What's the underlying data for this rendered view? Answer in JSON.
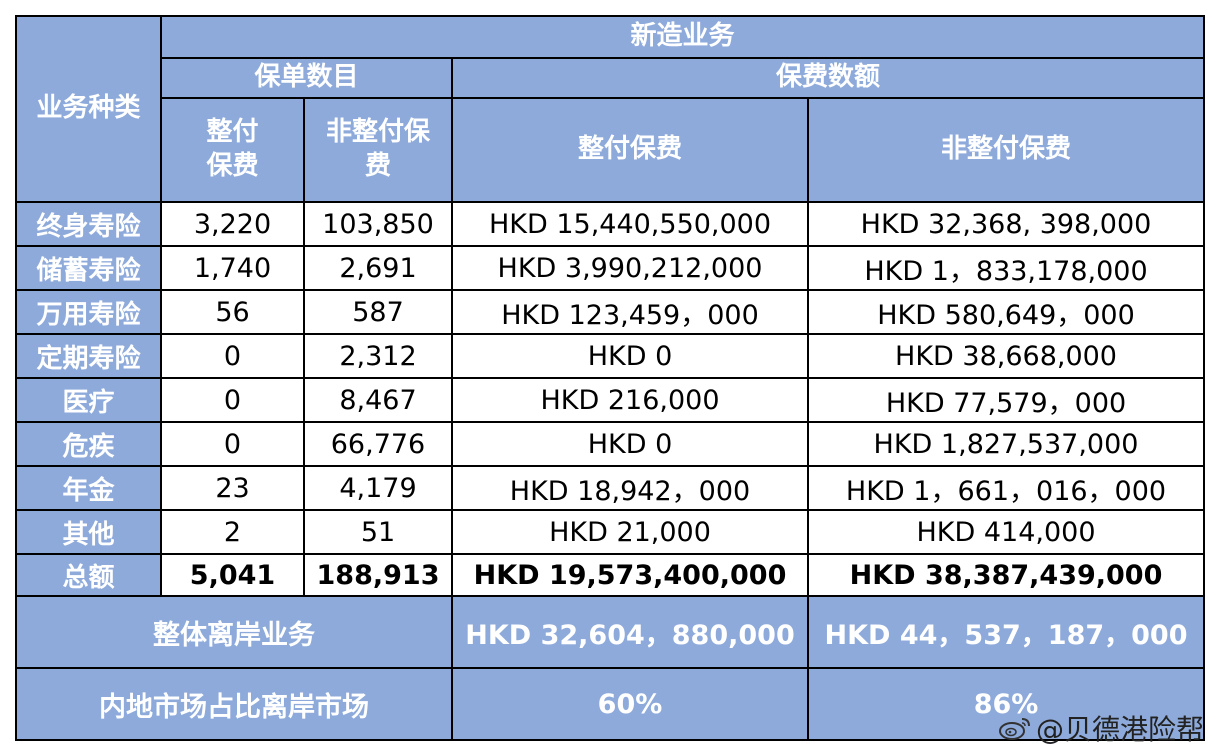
{
  "headers": {
    "category": "业务种类",
    "new_business": "新造业务",
    "policy_count": "保单数目",
    "premium_amount": "保费数额",
    "single_premium_count": "整付\n保费",
    "non_single_premium_count": "非整付保\n费",
    "single_premium": "整付保费",
    "non_single_premium": "非整付保费"
  },
  "rows": [
    {
      "category": "终身寿险",
      "single_count": "3,220",
      "non_single_count": "103,850",
      "single_premium": "HKD 15,440,550,000",
      "non_single_premium": "HKD 32,368, 398,000"
    },
    {
      "category": "储蓄寿险",
      "single_count": "1,740",
      "non_single_count": "2,691",
      "single_premium": "HKD 3,990,212,000",
      "non_single_premium": "HKD 1，833,178,000"
    },
    {
      "category": "万用寿险",
      "single_count": "56",
      "non_single_count": "587",
      "single_premium": "HKD 123,459，000",
      "non_single_premium": "HKD 580,649，000"
    },
    {
      "category": "定期寿险",
      "single_count": "0",
      "non_single_count": "2,312",
      "single_premium": "HKD 0",
      "non_single_premium": "HKD 38,668,000"
    },
    {
      "category": "医疗",
      "single_count": "0",
      "non_single_count": "8,467",
      "single_premium": "HKD 216,000",
      "non_single_premium": "HKD 77,579，000"
    },
    {
      "category": "危疾",
      "single_count": "0",
      "non_single_count": "66,776",
      "single_premium": "HKD 0",
      "non_single_premium": "HKD 1,827,537,000"
    },
    {
      "category": "年金",
      "single_count": "23",
      "non_single_count": "4,179",
      "single_premium": "HKD 18,942，000",
      "non_single_premium": "HKD 1，661，016，000"
    },
    {
      "category": "其他",
      "single_count": "2",
      "non_single_count": "51",
      "single_premium": "HKD 21,000",
      "non_single_premium": "HKD 414,000"
    }
  ],
  "total": {
    "category": "总额",
    "single_count": "5,041",
    "non_single_count": "188,913",
    "single_premium": "HKD 19,573,400,000",
    "non_single_premium": "HKD 38,387,439,000"
  },
  "offshore": {
    "label": "整体离岸业务",
    "single_premium": "HKD 32,604，880,000",
    "non_single_premium": "HKD 44，537，187，000"
  },
  "mainland_share": {
    "label": "内地市场占比离岸市场",
    "single_premium": "60%",
    "non_single_premium": "86%"
  },
  "watermark": {
    "icon": "weibo-icon",
    "text": "@贝德港险帮"
  },
  "colors": {
    "header_bg": "#8eaadb",
    "header_text": "#ffffff",
    "border": "#000000"
  }
}
